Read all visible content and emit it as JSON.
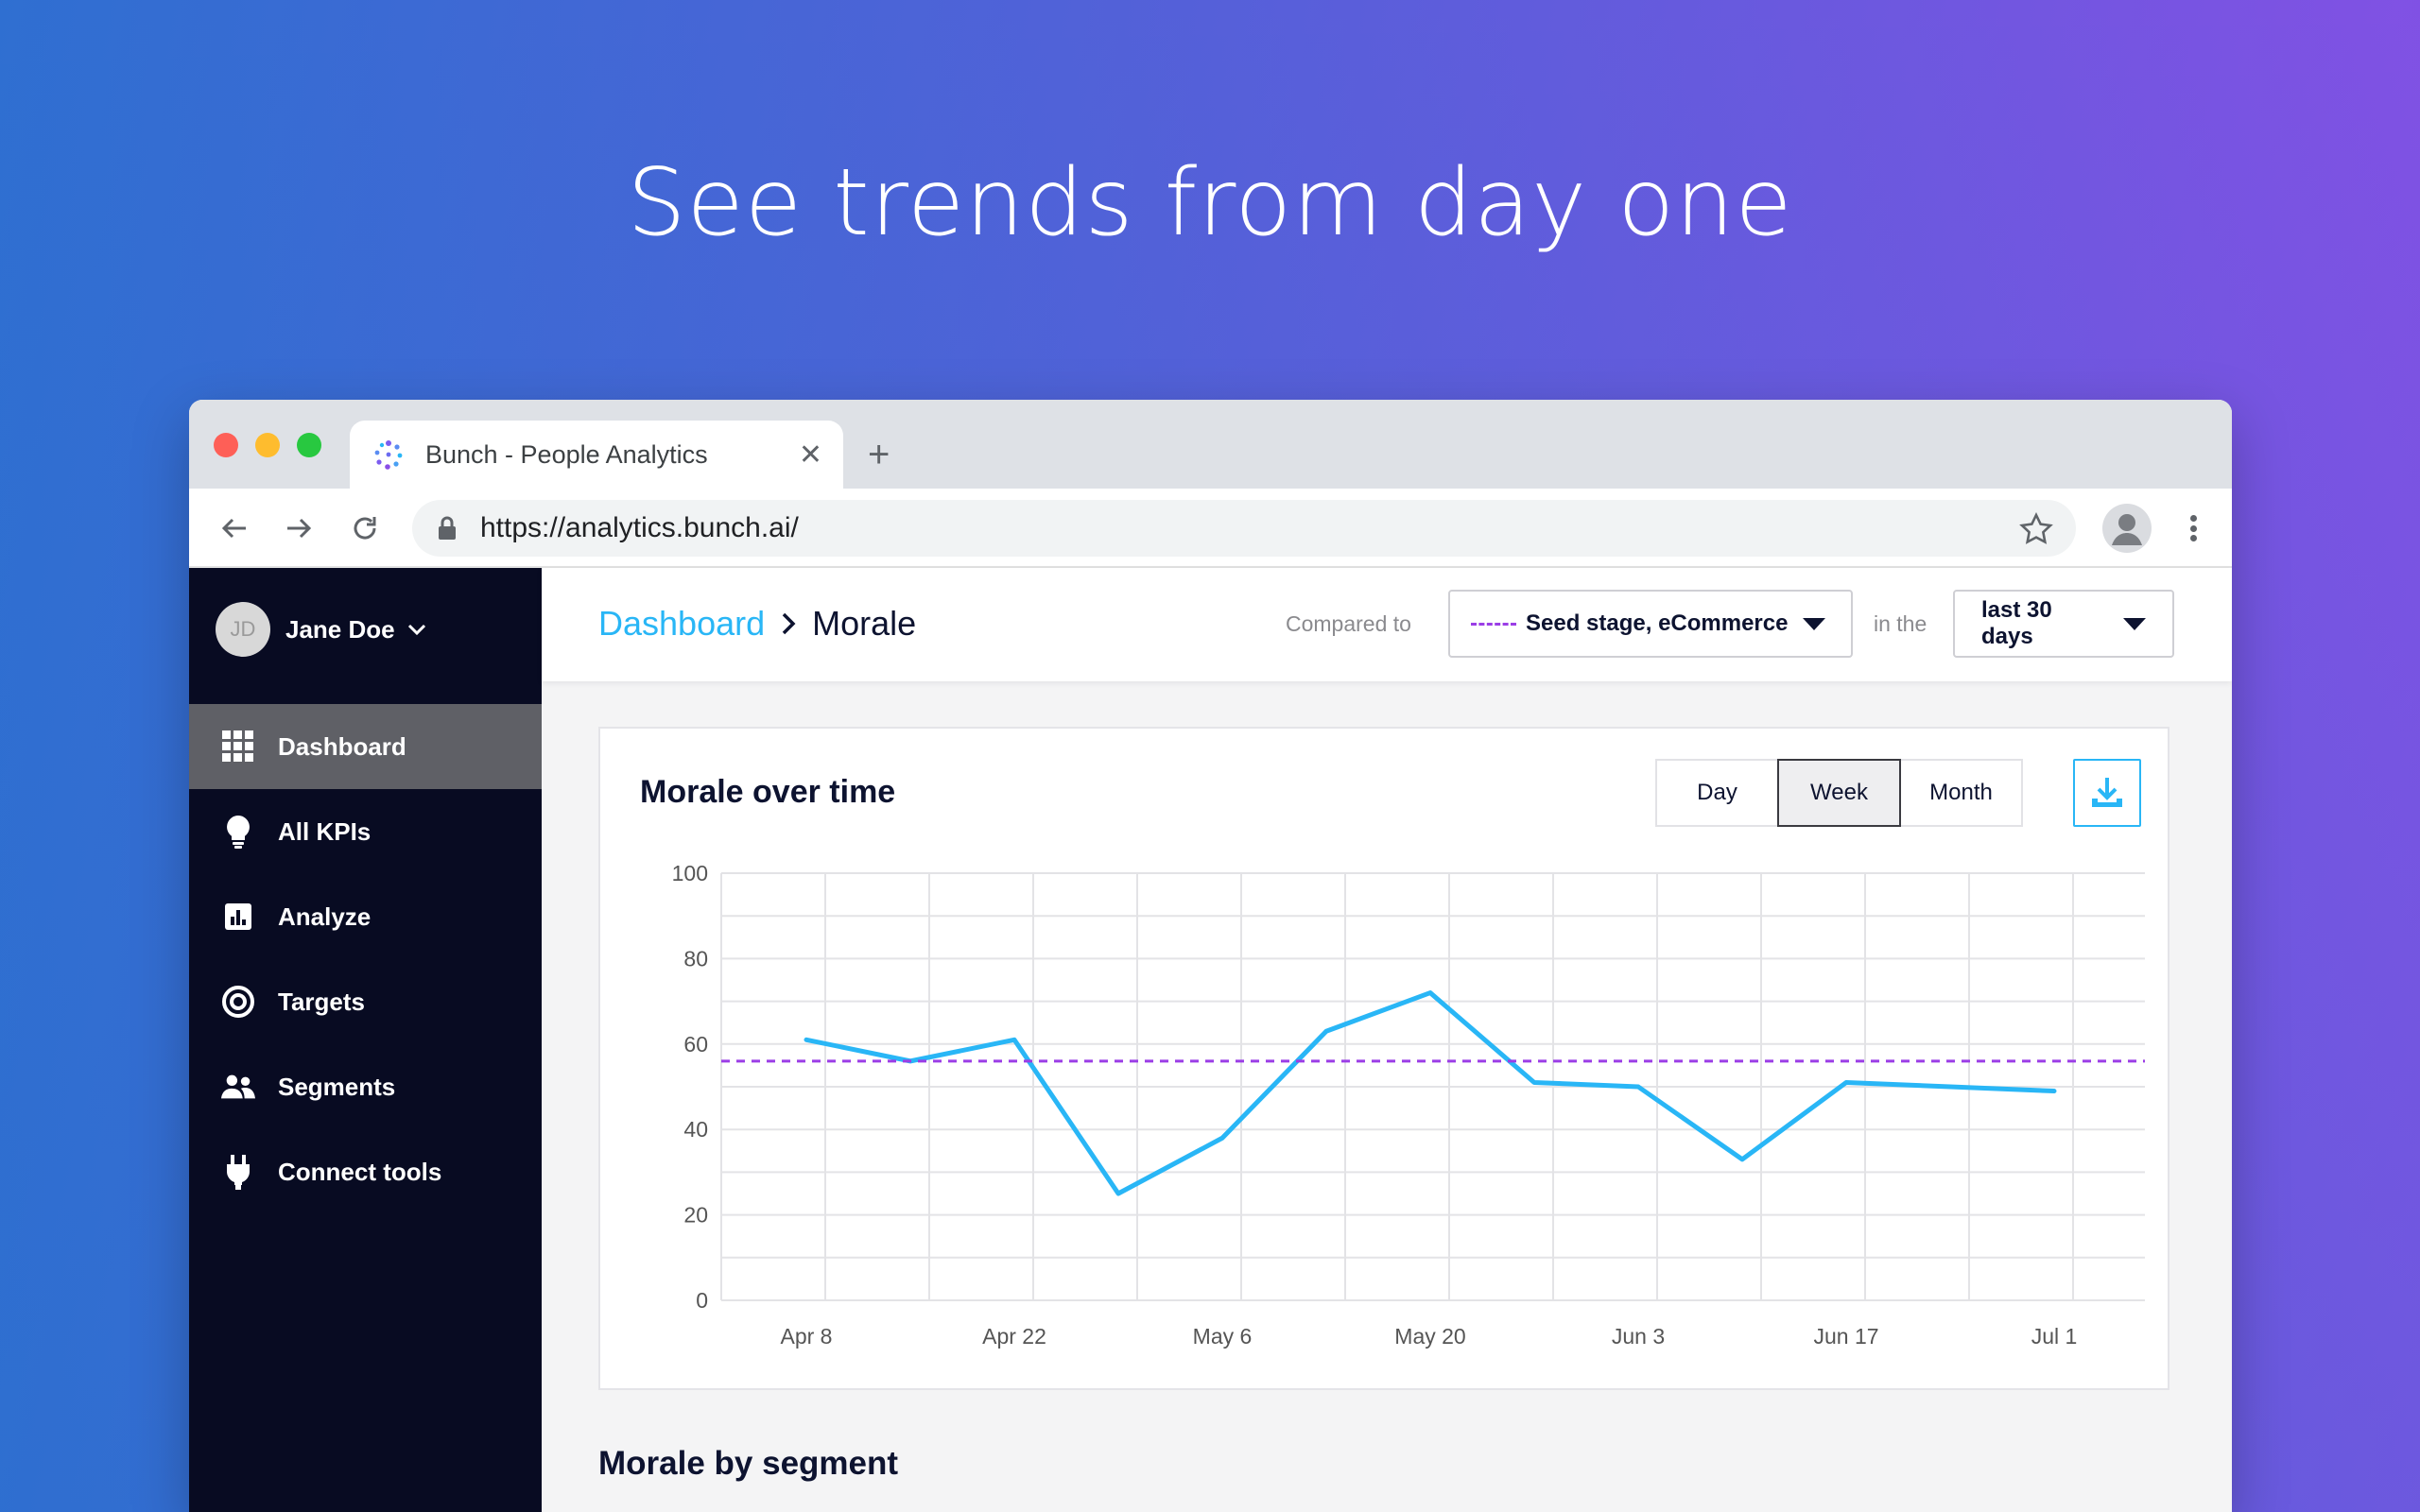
{
  "headline": "See trends from day one",
  "browser": {
    "tab_title": "Bunch - People Analytics",
    "url": "https://analytics.bunch.ai/"
  },
  "sidebar": {
    "user_initials": "JD",
    "user_name": "Jane Doe",
    "items": [
      {
        "label": "Dashboard",
        "icon": "grid-icon",
        "active": true
      },
      {
        "label": "All KPIs",
        "icon": "lightbulb-icon",
        "active": false
      },
      {
        "label": "Analyze",
        "icon": "bar-chart-icon",
        "active": false
      },
      {
        "label": "Targets",
        "icon": "target-icon",
        "active": false
      },
      {
        "label": "Segments",
        "icon": "people-icon",
        "active": false
      },
      {
        "label": "Connect tools",
        "icon": "plug-icon",
        "active": false
      }
    ]
  },
  "header": {
    "breadcrumb_parent": "Dashboard",
    "breadcrumb_current": "Morale",
    "compared_to_label": "Compared to",
    "comparison_value": "Seed stage, eCommerce",
    "in_the_label": "in the",
    "period_value": "last 30 days"
  },
  "card": {
    "title": "Morale over time",
    "granularity": [
      "Day",
      "Week",
      "Month"
    ],
    "selected_granularity": "Week"
  },
  "section_title": "Morale by segment",
  "colors": {
    "accent": "#29b6f6",
    "benchmark": "#9b3ee6",
    "sidebar_bg": "#080b22"
  },
  "chart_data": {
    "type": "line",
    "ylim": [
      0,
      100
    ],
    "yticks": [
      0,
      20,
      40,
      60,
      80,
      100
    ],
    "xtick_labels": [
      "Apr 8",
      "Apr 22",
      "May 6",
      "May 20",
      "Jun 3",
      "Jun 17",
      "Jul 1"
    ],
    "x": [
      "Apr 8",
      "Apr 15",
      "Apr 22",
      "Apr 29",
      "May 6",
      "May 13",
      "May 20",
      "May 27",
      "Jun 3",
      "Jun 10",
      "Jun 17",
      "Jun 24",
      "Jul 1"
    ],
    "series": [
      {
        "values": [
          61,
          56,
          61,
          25,
          38,
          63,
          72,
          51,
          50,
          33,
          51,
          50,
          49
        ],
        "color": "#29b6f6"
      },
      {
        "values": [
          56,
          56,
          56,
          56,
          56,
          56,
          56,
          56,
          56,
          56,
          56,
          56,
          56
        ],
        "color": "#9b3ee6",
        "dashed": true
      }
    ],
    "grid": true
  }
}
